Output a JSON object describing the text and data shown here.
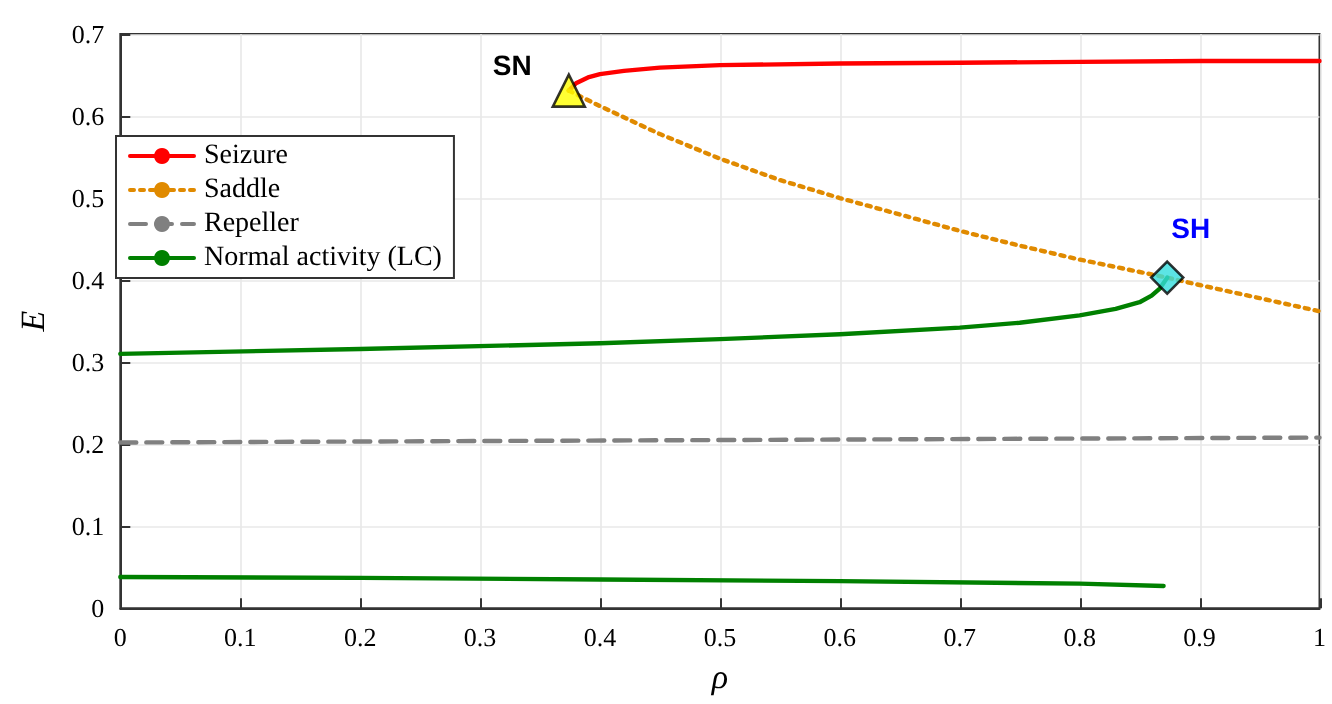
{
  "chart_data": {
    "type": "line",
    "xlabel": "ρ",
    "ylabel": "E",
    "xlim": [
      0,
      1
    ],
    "xticks": [
      0,
      0.1,
      0.2,
      0.3,
      0.4,
      0.5,
      0.6,
      0.7,
      0.8,
      0.9,
      1
    ],
    "ylim": [
      0,
      0.7
    ],
    "yticks": [
      0,
      0.1,
      0.2,
      0.3,
      0.4,
      0.5,
      0.6,
      0.7
    ],
    "grid": true,
    "legend": "left",
    "series": [
      {
        "name": "Seizure",
        "color": "#ff0000",
        "line_style": "solid",
        "x": [
          0.374,
          0.38,
          0.39,
          0.4,
          0.42,
          0.45,
          0.5,
          0.6,
          0.7,
          0.8,
          0.9,
          1
        ],
        "values": [
          0.631,
          0.64,
          0.647,
          0.651,
          0.655,
          0.659,
          0.662,
          0.664,
          0.665,
          0.666,
          0.667,
          0.667
        ]
      },
      {
        "name": "Saddle",
        "color": "#e08a00",
        "line_style": "dotted",
        "x": [
          0.374,
          0.4,
          0.45,
          0.5,
          0.55,
          0.6,
          0.65,
          0.7,
          0.75,
          0.8,
          0.873,
          0.9,
          0.95,
          1
        ],
        "values": [
          0.631,
          0.612,
          0.578,
          0.548,
          0.522,
          0.5,
          0.48,
          0.46,
          0.442,
          0.425,
          0.403,
          0.394,
          0.378,
          0.362
        ]
      },
      {
        "name": "Repeller",
        "color": "#808080",
        "line_style": "dashed",
        "x": [
          0,
          0.5,
          1
        ],
        "values": [
          0.202,
          0.205,
          0.208
        ]
      },
      {
        "name": "Normal activity (LC)",
        "color": "#008000",
        "line_style": "solid",
        "x": [
          0,
          0.2,
          0.4,
          0.5,
          0.6,
          0.7,
          0.75,
          0.8,
          0.83,
          0.85,
          0.86,
          0.867,
          0.873
        ],
        "values": [
          0.31,
          0.316,
          0.323,
          0.328,
          0.334,
          0.342,
          0.348,
          0.357,
          0.365,
          0.373,
          0.381,
          0.39,
          0.403
        ]
      },
      {
        "color": "#008000",
        "line_style": "solid",
        "x": [
          0,
          0.2,
          0.4,
          0.6,
          0.8,
          0.87
        ],
        "values": [
          0.038,
          0.037,
          0.035,
          0.033,
          0.03,
          0.027
        ]
      },
      {
        "type": "scatter",
        "color": "#ffff00",
        "marker": "triangle",
        "x": [
          0.374
        ],
        "values": [
          0.631
        ]
      },
      {
        "type": "scatter",
        "color": "#33dddd",
        "marker": "diamond",
        "x": [
          0.873
        ],
        "values": [
          0.403
        ]
      }
    ],
    "annotations": [
      {
        "text": "SN",
        "x": 0.374,
        "y": 0.631
      },
      {
        "text": "SH",
        "x": 0.873,
        "y": 0.403
      }
    ]
  }
}
